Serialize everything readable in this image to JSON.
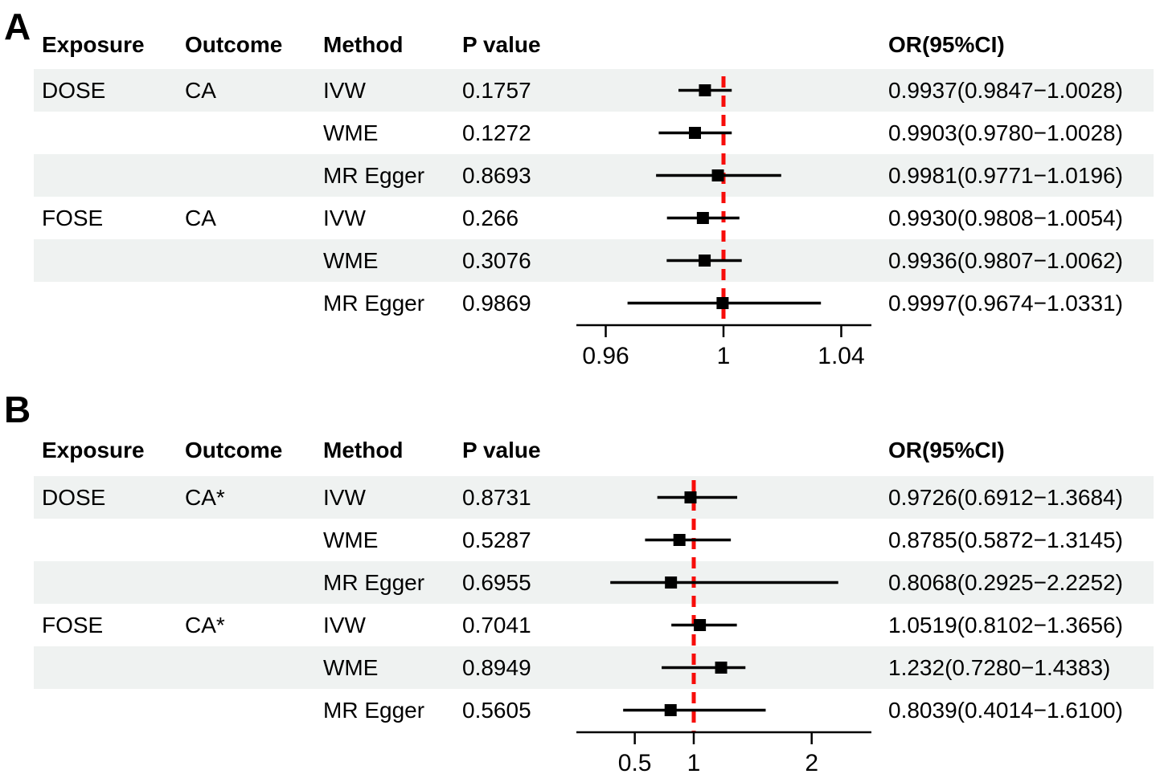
{
  "colors": {
    "stripe": "#eff2f1",
    "reference_line": "#f70d0a",
    "marker": "#000000",
    "ci_line": "#000000",
    "axis": "#000000",
    "text": "#000000"
  },
  "chart_data": [
    {
      "type": "scatter",
      "subtype": "forest-plot",
      "title": "A",
      "columns": [
        "Exposure",
        "Outcome",
        "Method",
        "P value",
        "OR(95%CI)"
      ],
      "rows": [
        {
          "exposure": "DOSE",
          "outcome": "CA",
          "method": "IVW",
          "p_value": "0.1757",
          "or": 0.9937,
          "ci_low": 0.9847,
          "ci_high": 1.0028,
          "or_text": "0.9937(0.9847−1.0028)"
        },
        {
          "exposure": "",
          "outcome": "",
          "method": "WME",
          "p_value": "0.1272",
          "or": 0.9903,
          "ci_low": 0.978,
          "ci_high": 1.0028,
          "or_text": "0.9903(0.9780−1.0028)"
        },
        {
          "exposure": "",
          "outcome": "",
          "method": "MR Egger",
          "p_value": "0.8693",
          "or": 0.9981,
          "ci_low": 0.9771,
          "ci_high": 1.0196,
          "or_text": "0.9981(0.9771−1.0196)"
        },
        {
          "exposure": "FOSE",
          "outcome": "CA",
          "method": "IVW",
          "p_value": "0.266",
          "or": 0.993,
          "ci_low": 0.9808,
          "ci_high": 1.0054,
          "or_text": "0.9930(0.9808−1.0054)"
        },
        {
          "exposure": "",
          "outcome": "",
          "method": "WME",
          "p_value": "0.3076",
          "or": 0.9936,
          "ci_low": 0.9807,
          "ci_high": 1.0062,
          "or_text": "0.9936(0.9807−1.0062)"
        },
        {
          "exposure": "",
          "outcome": "",
          "method": "MR Egger",
          "p_value": "0.9869",
          "or": 0.9997,
          "ci_low": 0.9674,
          "ci_high": 1.0331,
          "or_text": "0.9997(0.9674−1.0331)"
        }
      ],
      "x_ticks": [
        0.96,
        1,
        1.04
      ],
      "x_tick_labels": [
        "0.96",
        "1",
        "1.04"
      ],
      "x_scale": "linear",
      "xlim": [
        0.95,
        1.05
      ],
      "reference_line": 1,
      "grid": false,
      "legend": "none"
    },
    {
      "type": "scatter",
      "subtype": "forest-plot",
      "title": "B",
      "columns": [
        "Exposure",
        "Outcome",
        "Method",
        "P value",
        "OR(95%CI)"
      ],
      "rows": [
        {
          "exposure": "DOSE",
          "outcome": "CA*",
          "method": "IVW",
          "p_value": "0.8731",
          "or": 0.9726,
          "ci_low": 0.6912,
          "ci_high": 1.3684,
          "or_text": "0.9726(0.6912−1.3684)"
        },
        {
          "exposure": "",
          "outcome": "",
          "method": "WME",
          "p_value": "0.5287",
          "or": 0.8785,
          "ci_low": 0.5872,
          "ci_high": 1.3145,
          "or_text": "0.8785(0.5872−1.3145)"
        },
        {
          "exposure": "",
          "outcome": "",
          "method": "MR Egger",
          "p_value": "0.6955",
          "or": 0.8068,
          "ci_low": 0.2925,
          "ci_high": 2.2252,
          "or_text": "0.8068(0.2925−2.2252)"
        },
        {
          "exposure": "FOSE",
          "outcome": "CA*",
          "method": "IVW",
          "p_value": "0.7041",
          "or": 1.0519,
          "ci_low": 0.8102,
          "ci_high": 1.3656,
          "or_text": "1.0519(0.8102−1.3656)"
        },
        {
          "exposure": "",
          "outcome": "",
          "method": "WME",
          "p_value": "0.8949",
          "or": 1.232,
          "ci_low": 0.728,
          "ci_high": 1.4383,
          "or_text": "1.232(0.7280−1.4383)"
        },
        {
          "exposure": "",
          "outcome": "",
          "method": "MR Egger",
          "p_value": "0.5605",
          "or": 0.8039,
          "ci_low": 0.4014,
          "ci_high": 1.61,
          "or_text": "0.8039(0.4014−1.6100)"
        }
      ],
      "x_ticks": [
        0.5,
        1,
        2
      ],
      "x_tick_labels": [
        "0.5",
        "1",
        "2"
      ],
      "x_scale": "linear",
      "xlim": [
        0.0,
        2.51
      ],
      "reference_line": 1,
      "grid": false,
      "legend": "none"
    }
  ]
}
